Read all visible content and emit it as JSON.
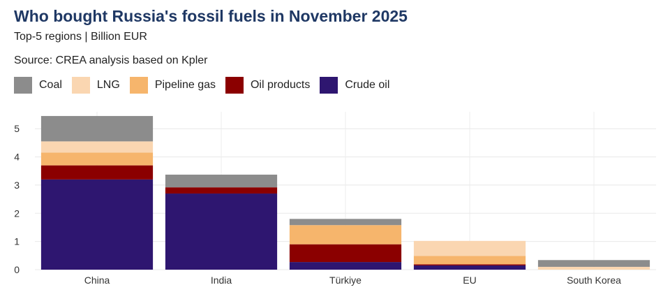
{
  "chart_data": {
    "type": "bar",
    "stacked": true,
    "title": "Who bought Russia's fossil fuels in November 2025",
    "subtitle": "Top-5 regions | Billion EUR",
    "source": "Source: CREA analysis based on Kpler",
    "categories": [
      "China",
      "India",
      "Türkiye",
      "EU",
      "South Korea"
    ],
    "series": [
      {
        "name": "Crude oil",
        "color": "#2e1670",
        "values": [
          3.2,
          2.7,
          0.27,
          0.15,
          0.0
        ]
      },
      {
        "name": "Oil products",
        "color": "#8b0000",
        "values": [
          0.5,
          0.22,
          0.63,
          0.04,
          0.0
        ]
      },
      {
        "name": "Pipeline gas",
        "color": "#f6b56c",
        "values": [
          0.45,
          0.0,
          0.68,
          0.3,
          0.0
        ]
      },
      {
        "name": "LNG",
        "color": "#fad6b1",
        "values": [
          0.4,
          0.0,
          0.0,
          0.53,
          0.1
        ]
      },
      {
        "name": "Coal",
        "color": "#8c8c8c",
        "values": [
          0.9,
          0.45,
          0.22,
          0.0,
          0.24
        ]
      }
    ],
    "legend_order": [
      "Coal",
      "LNG",
      "Pipeline gas",
      "Oil products",
      "Crude oil"
    ],
    "yticks": [
      "0",
      "1",
      "2",
      "3",
      "4",
      "5"
    ],
    "ylim": [
      0,
      5.6
    ],
    "grid": true,
    "legend_position": "top-left"
  }
}
